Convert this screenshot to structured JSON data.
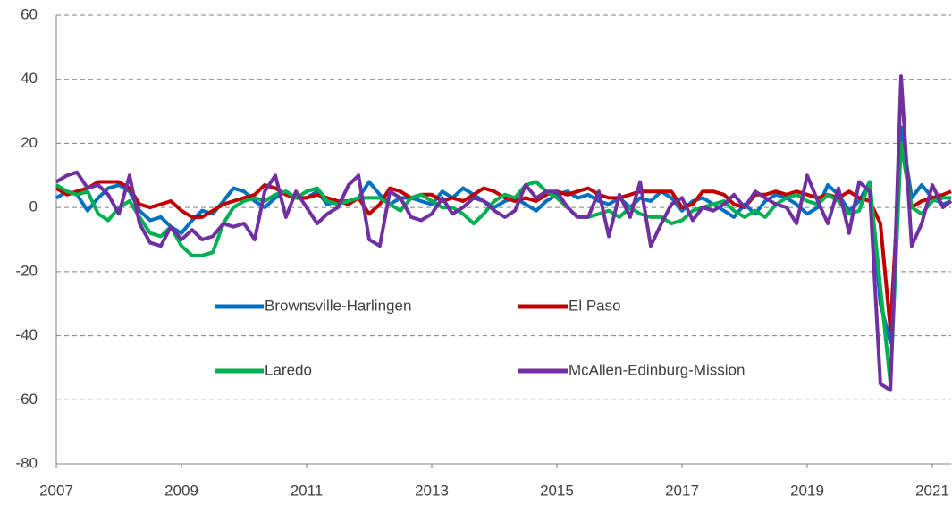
{
  "chart_data": {
    "type": "line",
    "x": [
      2007,
      2007.17,
      2007.33,
      2007.5,
      2007.67,
      2007.83,
      2008,
      2008.17,
      2008.33,
      2008.5,
      2008.67,
      2008.83,
      2009,
      2009.17,
      2009.33,
      2009.5,
      2009.67,
      2009.83,
      2010,
      2010.17,
      2010.33,
      2010.5,
      2010.67,
      2010.83,
      2011,
      2011.17,
      2011.33,
      2011.5,
      2011.67,
      2011.83,
      2012,
      2012.17,
      2012.33,
      2012.5,
      2012.67,
      2012.83,
      2013,
      2013.17,
      2013.33,
      2013.5,
      2013.67,
      2013.83,
      2014,
      2014.17,
      2014.33,
      2014.5,
      2014.67,
      2014.83,
      2015,
      2015.17,
      2015.33,
      2015.5,
      2015.67,
      2015.83,
      2016,
      2016.17,
      2016.33,
      2016.5,
      2016.67,
      2016.83,
      2017,
      2017.17,
      2017.33,
      2017.5,
      2017.67,
      2017.83,
      2018,
      2018.17,
      2018.33,
      2018.5,
      2018.67,
      2018.83,
      2019,
      2019.17,
      2019.33,
      2019.5,
      2019.67,
      2019.83,
      2020,
      2020.17,
      2020.33,
      2020.5,
      2020.67,
      2020.83,
      2021,
      2021.17,
      2021.3
    ],
    "series": [
      {
        "name": "Brownsville-Harlingen",
        "color": "#0070c0",
        "values": [
          3,
          5,
          4,
          -1,
          3,
          6,
          7,
          5,
          -1,
          -4,
          -3,
          -6,
          -8,
          -4,
          -1,
          -2,
          2,
          6,
          5,
          2,
          0,
          3,
          5,
          3,
          3,
          5,
          1,
          2,
          2,
          3,
          8,
          4,
          1,
          3,
          3,
          2,
          1,
          5,
          3,
          6,
          4,
          2,
          0,
          2,
          3,
          1,
          -1,
          2,
          4,
          5,
          3,
          4,
          2,
          1,
          3,
          0,
          3,
          2,
          5,
          3,
          -1,
          2,
          3,
          1,
          -1,
          -3,
          1,
          -2,
          2,
          4,
          3,
          1,
          -2,
          0,
          7,
          4,
          -1,
          2,
          8,
          -30,
          -42,
          25,
          3,
          7,
          3,
          1,
          2
        ]
      },
      {
        "name": "El Paso",
        "color": "#c00000",
        "values": [
          6,
          4,
          5,
          6,
          8,
          8,
          8,
          6,
          1,
          0,
          1,
          2,
          -1,
          -3,
          -3,
          -1,
          1,
          2,
          3,
          4,
          7,
          6,
          4,
          3,
          3,
          4,
          3,
          2,
          1,
          3,
          -2,
          1,
          6,
          5,
          3,
          4,
          4,
          2,
          3,
          2,
          4,
          6,
          5,
          3,
          2,
          3,
          2,
          4,
          5,
          4,
          5,
          6,
          4,
          3,
          3,
          4,
          5,
          5,
          5,
          5,
          0,
          1,
          5,
          5,
          4,
          1,
          0,
          4,
          4,
          5,
          4,
          5,
          4,
          3,
          4,
          3,
          5,
          3,
          2,
          -5,
          -38,
          20,
          0,
          2,
          3,
          4,
          5
        ]
      },
      {
        "name": "Laredo",
        "color": "#00b050",
        "values": [
          7,
          5,
          4,
          5,
          -2,
          -4,
          0,
          2,
          -3,
          -8,
          -9,
          -6,
          -12,
          -15,
          -15,
          -14,
          -5,
          0,
          2,
          3,
          2,
          4,
          5,
          3,
          5,
          6,
          2,
          1,
          2,
          3,
          3,
          3,
          1,
          -1,
          3,
          4,
          2,
          0,
          0,
          -2,
          -5,
          -2,
          2,
          4,
          3,
          7,
          8,
          5,
          3,
          0,
          -3,
          -3,
          -2,
          -1,
          -3,
          0,
          -2,
          -3,
          -3,
          -5,
          -4,
          -1,
          0,
          1,
          2,
          -1,
          -3,
          -1,
          -3,
          1,
          3,
          4,
          2,
          1,
          4,
          2,
          -2,
          -1,
          8,
          -25,
          -55,
          20,
          0,
          -2,
          2,
          3,
          3
        ]
      },
      {
        "name": "McAllen-Edinburg-Mission",
        "color": "#7030a0",
        "values": [
          8,
          10,
          11,
          6,
          7,
          4,
          -2,
          10,
          -5,
          -11,
          -12,
          -6,
          -10,
          -7,
          -10,
          -9,
          -5,
          -6,
          -5,
          -10,
          5,
          10,
          -3,
          5,
          0,
          -5,
          -2,
          0,
          7,
          10,
          -10,
          -12,
          5,
          3,
          -3,
          -4,
          -2,
          3,
          -2,
          0,
          3,
          2,
          -1,
          -3,
          -1,
          7,
          3,
          5,
          5,
          0,
          -3,
          -3,
          5,
          -9,
          4,
          -3,
          8,
          -12,
          -5,
          1,
          3,
          -4,
          0,
          -1,
          1,
          4,
          0,
          5,
          3,
          1,
          0,
          -5,
          10,
          2,
          -5,
          6,
          -8,
          8,
          5,
          -55,
          -57,
          41,
          -12,
          -5,
          7,
          0,
          2
        ]
      }
    ],
    "xlim": [
      2007,
      2021.3
    ],
    "xticks": [
      2007,
      2009,
      2011,
      2013,
      2015,
      2017,
      2019,
      2021
    ],
    "ylim": [
      -80,
      60
    ],
    "yticks": [
      -80,
      -60,
      -40,
      -20,
      0,
      20,
      40,
      60
    ],
    "grid": true,
    "legend": "center"
  }
}
